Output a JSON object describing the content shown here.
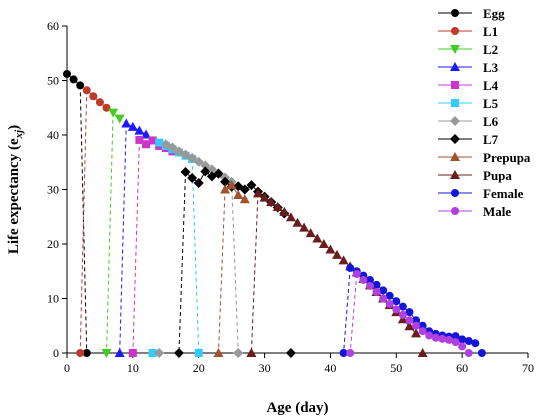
{
  "chart_data": {
    "type": "scatter",
    "xlabel": "Age (day)",
    "ylabel": "Life expectancy (e",
    "ylabel_sub": "xj",
    "ylabel_close": ")",
    "xlim": [
      0,
      70
    ],
    "ylim": [
      0,
      60
    ],
    "xticks": [
      "0",
      "10",
      "20",
      "30",
      "40",
      "50",
      "60",
      "70"
    ],
    "yticks": [
      "0",
      "10",
      "20",
      "30",
      "40",
      "50",
      "60"
    ],
    "grid": false,
    "legend_position": "top-right",
    "series": [
      {
        "name": "Egg",
        "color": "#000000",
        "marker": "circle",
        "x": [
          0,
          1,
          2,
          3
        ],
        "y": [
          51.2,
          50.2,
          49.1,
          0
        ],
        "drop": {
          "from": [
            2,
            49.1
          ],
          "to": [
            3,
            0
          ]
        }
      },
      {
        "name": "L1",
        "color": "#c0392b",
        "marker": "circle",
        "x": [
          2,
          3,
          4,
          5,
          6
        ],
        "y": [
          0,
          48.2,
          47.1,
          46.0,
          45.0
        ],
        "drop": {
          "from": [
            3,
            48.2
          ],
          "to": [
            2,
            0
          ]
        }
      },
      {
        "name": "L2",
        "color": "#44cc22",
        "marker": "triangle-down",
        "x": [
          6,
          7,
          8
        ],
        "y": [
          0,
          44.1,
          43.0
        ],
        "drop": {
          "from": [
            7,
            44.1
          ],
          "to": [
            6,
            0
          ]
        }
      },
      {
        "name": "L3",
        "color": "#1a1aff",
        "marker": "triangle-up",
        "x": [
          8,
          9,
          10,
          11,
          12
        ],
        "y": [
          0,
          42.1,
          41.5,
          40.8,
          40.1
        ],
        "drop": {
          "from": [
            9,
            42.1
          ],
          "to": [
            8,
            0
          ]
        }
      },
      {
        "name": "L4",
        "color": "#cc33cc",
        "marker": "square",
        "x": [
          10,
          11,
          12,
          13,
          14,
          15,
          16
        ],
        "y": [
          0,
          39.1,
          38.3,
          39.0,
          38.0,
          37.6,
          37.0
        ],
        "drop": {
          "from": [
            11,
            39.1
          ],
          "to": [
            10,
            0
          ]
        }
      },
      {
        "name": "L5",
        "color": "#33ccff",
        "marker": "square",
        "x": [
          13,
          14,
          15,
          16,
          17,
          18,
          19,
          20
        ],
        "y": [
          0,
          38.6,
          38.0,
          37.4,
          36.8,
          36.2,
          35.6,
          0
        ],
        "drop": {
          "from": [
            19,
            35.6
          ],
          "to": [
            20,
            0
          ]
        }
      },
      {
        "name": "L6",
        "color": "#999999",
        "marker": "diamond",
        "x": [
          14,
          15,
          16,
          17,
          18,
          19,
          20,
          21,
          22,
          23,
          24,
          25,
          26
        ],
        "y": [
          0,
          38.3,
          37.7,
          37.0,
          36.4,
          35.8,
          35.1,
          34.4,
          33.7,
          33.0,
          32.2,
          31.4,
          0
        ],
        "drop": {
          "from": [
            25,
            31.4
          ],
          "to": [
            26,
            0
          ]
        }
      },
      {
        "name": "L7",
        "color": "#000000",
        "marker": "diamond",
        "x": [
          17,
          18,
          19,
          20,
          21,
          22,
          23,
          24,
          25,
          26,
          27,
          28,
          29,
          30,
          31,
          32,
          33,
          34
        ],
        "y": [
          0,
          33.2,
          32.1,
          31.2,
          33.3,
          32.4,
          32.9,
          31.4,
          30.5,
          30.6,
          30.0,
          30.8,
          29.6,
          28.7,
          27.7,
          26.7,
          25.6,
          0
        ],
        "drop": {
          "from": [
            18,
            33.2
          ],
          "to": [
            17,
            0
          ]
        }
      },
      {
        "name": "Prepupa",
        "color": "#a0522d",
        "marker": "triangle-up",
        "x": [
          23,
          24,
          25,
          26,
          27,
          28
        ],
        "y": [
          0,
          30.0,
          30.8,
          29.0,
          28.2,
          0
        ],
        "drop": {
          "from": [
            24,
            30.0
          ],
          "to": [
            23,
            0
          ]
        }
      },
      {
        "name": "Pupa",
        "color": "#6b1d1d",
        "marker": "triangle-up",
        "x": [
          28,
          29,
          30,
          31,
          32,
          33,
          34,
          35,
          36,
          37,
          38,
          39,
          40,
          41,
          42,
          43,
          44,
          45,
          46,
          47,
          48,
          49,
          50,
          51,
          52,
          53,
          54
        ],
        "y": [
          0,
          29.3,
          28.5,
          27.7,
          26.8,
          25.9,
          24.9,
          23.9,
          23.0,
          22.0,
          21.0,
          20.0,
          19.0,
          18.0,
          17.0,
          15.9,
          14.8,
          13.6,
          12.4,
          11.2,
          10.0,
          8.8,
          7.5,
          6.2,
          4.9,
          3.6,
          0
        ],
        "drop": {
          "from": [
            29,
            29.3
          ],
          "to": [
            28,
            0
          ]
        }
      },
      {
        "name": "Female",
        "color": "#1515d8",
        "marker": "circle",
        "x": [
          42,
          43,
          44,
          45,
          46,
          47,
          48,
          49,
          50,
          51,
          52,
          53,
          54,
          55,
          56,
          57,
          58,
          59,
          60,
          61,
          62,
          63
        ],
        "y": [
          0,
          15.6,
          15.0,
          14.2,
          13.4,
          12.5,
          11.5,
          10.5,
          9.5,
          8.5,
          7.5,
          6.0,
          5.0,
          4.0,
          3.5,
          3.2,
          3.0,
          3.1,
          2.5,
          2.2,
          1.8,
          0
        ],
        "drop": {
          "from": [
            43,
            15.6
          ],
          "to": [
            42,
            0
          ]
        }
      },
      {
        "name": "Male",
        "color": "#b040e0",
        "marker": "circle",
        "x": [
          43,
          44,
          45,
          46,
          47,
          48,
          49,
          50,
          51,
          52,
          53,
          54,
          55,
          56,
          57,
          58,
          59,
          60,
          61
        ],
        "y": [
          0,
          14.5,
          13.4,
          12.3,
          11.2,
          10.0,
          9.0,
          8.0,
          7.0,
          6.0,
          5.0,
          4.0,
          3.2,
          2.8,
          2.6,
          2.4,
          2.0,
          1.2,
          0
        ],
        "drop": {
          "from": [
            44,
            14.5
          ],
          "to": [
            43,
            0
          ]
        }
      }
    ]
  }
}
